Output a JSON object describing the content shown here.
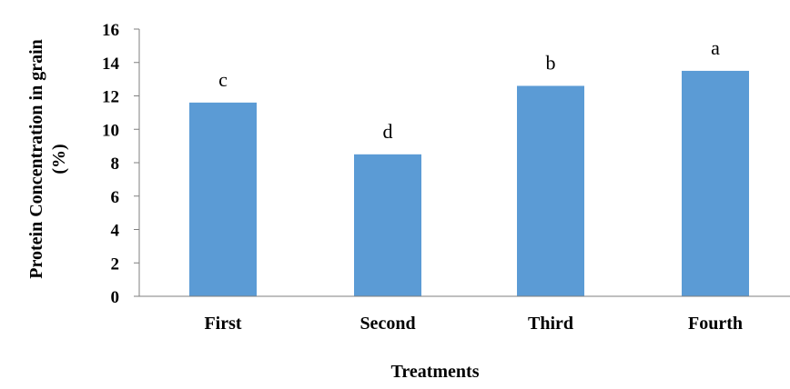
{
  "chart_data": {
    "type": "bar",
    "categories": [
      "First",
      "Second",
      "Third",
      "Fourth"
    ],
    "values": [
      11.6,
      8.5,
      12.6,
      13.5
    ],
    "data_labels": [
      "c",
      "d",
      "b",
      "a"
    ],
    "title": "",
    "xlabel": "Treatments",
    "ylabel_lines": [
      "Protein Concentration in grain",
      "(%)"
    ],
    "ylim": [
      0,
      16
    ],
    "yticks": [
      0,
      2,
      4,
      6,
      8,
      10,
      12,
      14,
      16
    ],
    "grid": false,
    "legend": "none",
    "bar_color": "#5b9bd5",
    "axis_color": "#7f7f7f"
  }
}
